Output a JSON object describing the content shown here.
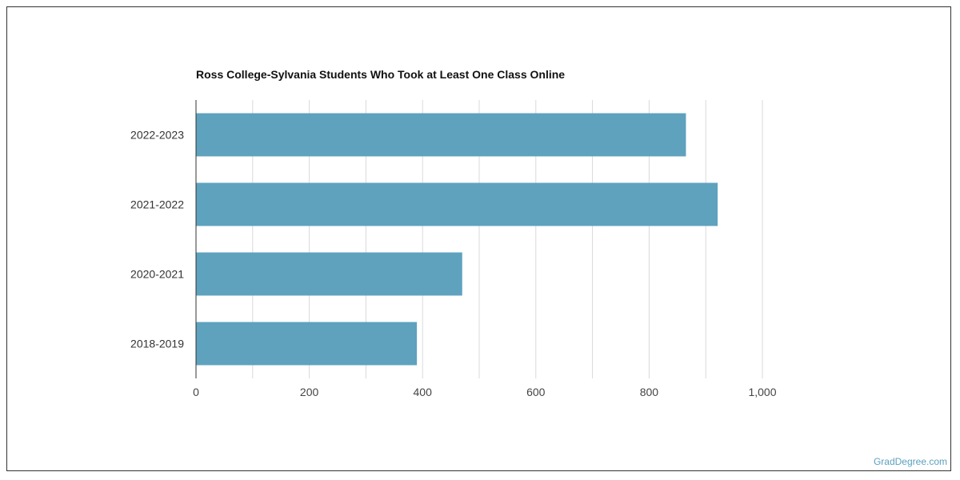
{
  "chart_data": {
    "type": "bar",
    "orientation": "horizontal",
    "title": "Ross College-Sylvania Students Who Took at Least One Class Online",
    "categories": [
      "2022-2023",
      "2021-2022",
      "2020-2021",
      "2018-2019"
    ],
    "values": [
      865,
      921,
      470,
      390
    ],
    "xlim": [
      0,
      1000
    ],
    "xticks": [
      0,
      200,
      400,
      600,
      800,
      1000
    ],
    "xtick_labels": [
      "0",
      "200",
      "400",
      "600",
      "800",
      "1,000"
    ],
    "xlabel": "",
    "ylabel": "",
    "grid": true,
    "bar_color": "#5ea2be"
  },
  "watermark": "GradDegree.com"
}
